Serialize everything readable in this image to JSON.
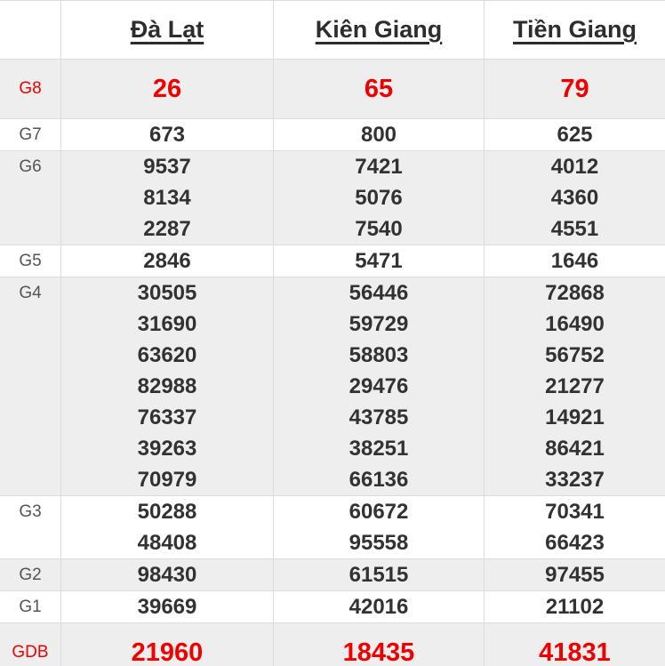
{
  "colors": {
    "highlight_red": "#f20000",
    "value_text": "#323232",
    "label_text": "#555555",
    "header_text": "#2d2d2d",
    "row_shade": "#eeeeee",
    "border": "#dcdcdc",
    "background": "#ffffff"
  },
  "header": {
    "columns": [
      "Đà Lạt",
      "Kiên Giang",
      "Tiền Giang"
    ]
  },
  "table": {
    "rows": [
      {
        "label": "G8",
        "highlight": true,
        "cells": [
          [
            "26"
          ],
          [
            "65"
          ],
          [
            "79"
          ]
        ]
      },
      {
        "label": "G7",
        "highlight": false,
        "cells": [
          [
            "673"
          ],
          [
            "800"
          ],
          [
            "625"
          ]
        ]
      },
      {
        "label": "G6",
        "highlight": false,
        "cells": [
          [
            "9537",
            "8134",
            "2287"
          ],
          [
            "7421",
            "5076",
            "7540"
          ],
          [
            "4012",
            "4360",
            "4551"
          ]
        ]
      },
      {
        "label": "G5",
        "highlight": false,
        "cells": [
          [
            "2846"
          ],
          [
            "5471"
          ],
          [
            "1646"
          ]
        ]
      },
      {
        "label": "G4",
        "highlight": false,
        "cells": [
          [
            "30505",
            "31690",
            "63620",
            "82988",
            "76337",
            "39263",
            "70979"
          ],
          [
            "56446",
            "59729",
            "58803",
            "29476",
            "43785",
            "38251",
            "66136"
          ],
          [
            "72868",
            "16490",
            "56752",
            "21277",
            "14921",
            "86421",
            "33237"
          ]
        ]
      },
      {
        "label": "G3",
        "highlight": false,
        "cells": [
          [
            "50288",
            "48408"
          ],
          [
            "60672",
            "95558"
          ],
          [
            "70341",
            "66423"
          ]
        ]
      },
      {
        "label": "G2",
        "highlight": false,
        "cells": [
          [
            "98430"
          ],
          [
            "61515"
          ],
          [
            "97455"
          ]
        ]
      },
      {
        "label": "G1",
        "highlight": false,
        "cells": [
          [
            "39669"
          ],
          [
            "42016"
          ],
          [
            "21102"
          ]
        ]
      },
      {
        "label": "GDB",
        "highlight": true,
        "cells": [
          [
            "21960"
          ],
          [
            "18435"
          ],
          [
            "41831"
          ]
        ]
      }
    ]
  }
}
